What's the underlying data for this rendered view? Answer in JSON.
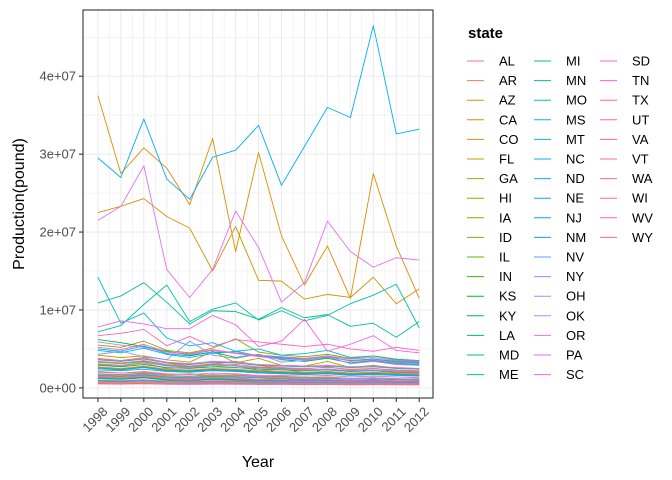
{
  "chart_data": {
    "type": "line",
    "xlabel": "Year",
    "ylabel": "Production(pound)",
    "legend_title": "state",
    "legend_position": "right",
    "grid": true,
    "xlim": [
      1997.35,
      2012.6
    ],
    "ylim": [
      -1300000.0,
      48500000.0
    ],
    "y_ticks": [
      0,
      10000000,
      20000000,
      30000000,
      40000000
    ],
    "y_tick_labels": [
      "0e+00",
      "1e+07",
      "2e+07",
      "3e+07",
      "4e+07"
    ],
    "x": [
      1998,
      1999,
      2000,
      2001,
      2002,
      2003,
      2004,
      2005,
      2006,
      2007,
      2008,
      2009,
      2010,
      2011,
      2012
    ],
    "x_tick_labels": [
      "1998",
      "1999",
      "2000",
      "2001",
      "2002",
      "2003",
      "2004",
      "2005",
      "2006",
      "2007",
      "2008",
      "2009",
      "2010",
      "2011",
      "2012"
    ],
    "series": [
      {
        "name": "AL",
        "color": "#F8766D",
        "values": [
          2100000,
          1900000,
          2000000,
          1700000,
          1800000,
          1600000,
          1700000,
          1500000,
          1400000,
          1300000,
          1400000,
          1200000,
          1300000,
          1100000,
          1200000
        ]
      },
      {
        "name": "AR",
        "color": "#F07F4A",
        "values": [
          1500000,
          1400000,
          1600000,
          1300000,
          1200000,
          1400000,
          1300000,
          1100000,
          1200000,
          1000000,
          1100000,
          900000,
          1000000,
          900000,
          800000
        ]
      },
      {
        "name": "AZ",
        "color": "#E6861E",
        "values": [
          3800000,
          3500000,
          3900000,
          3200000,
          2800000,
          3100000,
          3400000,
          2900000,
          2600000,
          2400000,
          2700000,
          2300000,
          2500000,
          2200000,
          2100000
        ]
      },
      {
        "name": "CA",
        "color": "#DB8E00",
        "values": [
          37500000,
          27500000,
          30800000,
          28200000,
          23500000,
          32000000,
          17500000,
          30200000,
          19500000,
          13200000,
          18200000,
          11500000,
          27500000,
          18200000,
          11500000
        ]
      },
      {
        "name": "CO",
        "color": "#CF9400",
        "values": [
          22500000,
          23300000,
          24300000,
          22000000,
          20500000,
          15000000,
          20700000,
          13800000,
          13700000,
          11400000,
          12000000,
          11600000,
          14200000,
          10800000,
          12700000
        ]
      },
      {
        "name": "FL",
        "color": "#C39A00",
        "values": [
          3000000,
          2800000,
          3200000,
          2500000,
          2600000,
          2700000,
          2900000,
          2200000,
          2400000,
          2000000,
          2100000,
          1900000,
          2000000,
          1800000,
          1700000
        ]
      },
      {
        "name": "GA",
        "color": "#B59F00",
        "values": [
          4200000,
          3900000,
          4100000,
          3600000,
          3300000,
          4700000,
          3200000,
          3800000,
          2900000,
          2800000,
          3400000,
          2600000,
          2900000,
          2500000,
          2400000
        ]
      },
      {
        "name": "HI",
        "color": "#A5A400",
        "values": [
          600000,
          580000,
          620000,
          550000,
          530000,
          560000,
          540000,
          500000,
          520000,
          480000,
          500000,
          470000,
          490000,
          460000,
          450000
        ]
      },
      {
        "name": "IA",
        "color": "#93A900",
        "values": [
          1800000,
          1700000,
          1900000,
          1600000,
          1500000,
          1700000,
          1600000,
          1400000,
          1500000,
          1300000,
          1400000,
          1200000,
          1300000,
          1200000,
          1100000
        ]
      },
      {
        "name": "ID",
        "color": "#7EAD00",
        "values": [
          5500000,
          5200000,
          6000000,
          4800000,
          4500000,
          5100000,
          6300000,
          4600000,
          4200000,
          4000000,
          4300000,
          3800000,
          4100000,
          3600000,
          3500000
        ]
      },
      {
        "name": "IL",
        "color": "#64B200",
        "values": [
          3300000,
          3100000,
          3400000,
          2900000,
          2700000,
          3000000,
          2800000,
          2600000,
          2500000,
          2300000,
          2400000,
          2200000,
          2300000,
          2100000,
          2000000
        ]
      },
      {
        "name": "IN",
        "color": "#3CB500",
        "values": [
          2600000,
          2400000,
          2700000,
          2300000,
          2200000,
          2400000,
          2300000,
          2100000,
          2000000,
          1900000,
          2000000,
          1800000,
          1900000,
          1700000,
          1600000
        ]
      },
      {
        "name": "KS",
        "color": "#00B81F",
        "values": [
          1200000,
          1100000,
          1300000,
          1000000,
          950000,
          1100000,
          1000000,
          900000,
          950000,
          850000,
          900000,
          800000,
          850000,
          780000,
          750000
        ]
      },
      {
        "name": "KY",
        "color": "#00BA42",
        "values": [
          6200000,
          5800000,
          5300000,
          4700000,
          4200000,
          4600000,
          3900000,
          4300000,
          3600000,
          3400000,
          3800000,
          3200000,
          3500000,
          3100000,
          3000000
        ]
      },
      {
        "name": "LA",
        "color": "#00BC5C",
        "values": [
          2900000,
          2700000,
          3000000,
          2600000,
          2500000,
          2700000,
          2600000,
          2400000,
          2300000,
          2200000,
          2300000,
          2100000,
          2200000,
          2000000,
          1900000
        ]
      },
      {
        "name": "MD",
        "color": "#00BE72",
        "values": [
          900000,
          850000,
          950000,
          800000,
          780000,
          820000,
          800000,
          750000,
          760000,
          720000,
          740000,
          700000,
          710000,
          680000,
          660000
        ]
      },
      {
        "name": "ME",
        "color": "#00BF87",
        "values": [
          1600000,
          1500000,
          1700000,
          1400000,
          1300000,
          1500000,
          1400000,
          1300000,
          1200000,
          1100000,
          1200000,
          1100000,
          1150000,
          1050000,
          1000000
        ]
      },
      {
        "name": "MI",
        "color": "#00C099",
        "values": [
          10900000,
          11800000,
          13500000,
          11000000,
          8200000,
          9900000,
          9800000,
          8800000,
          10300000,
          9000000,
          9400000,
          7900000,
          8300000,
          6500000,
          8500000
        ]
      },
      {
        "name": "MN",
        "color": "#00C0AA",
        "values": [
          7200000,
          8000000,
          10700000,
          13200000,
          8500000,
          10100000,
          10900000,
          8700000,
          9900000,
          8600000,
          9300000,
          10800000,
          11900000,
          13300000,
          7700000
        ]
      },
      {
        "name": "MO",
        "color": "#00C0BA",
        "values": [
          3600000,
          3400000,
          3700000,
          3200000,
          3000000,
          3300000,
          3200000,
          2900000,
          2800000,
          2700000,
          2800000,
          2600000,
          2700000,
          2500000,
          2400000
        ]
      },
      {
        "name": "MS",
        "color": "#00BEC9",
        "values": [
          2300000,
          2200000,
          2400000,
          2100000,
          2000000,
          2200000,
          2100000,
          1900000,
          1800000,
          1700000,
          1800000,
          1600000,
          1700000,
          1600000,
          1500000
        ]
      },
      {
        "name": "MT",
        "color": "#00BBD7",
        "values": [
          14200000,
          8300000,
          9600000,
          6400000,
          5400000,
          5800000,
          4700000,
          5000000,
          4200000,
          4400000,
          4800000,
          3900000,
          4100000,
          3700000,
          3500000
        ]
      },
      {
        "name": "NC",
        "color": "#00B7E4",
        "values": [
          4800000,
          4500000,
          5100000,
          4300000,
          3900000,
          4400000,
          4700000,
          4100000,
          3800000,
          3600000,
          3900000,
          3500000,
          3700000,
          3300000,
          3200000
        ]
      },
      {
        "name": "ND",
        "color": "#00B2F0",
        "values": [
          5000000,
          4700000,
          5400000,
          4400000,
          4100000,
          4600000,
          4500000,
          4100000,
          3900000,
          3700000,
          4000000,
          3500000,
          3700000,
          3400000,
          3300000
        ]
      },
      {
        "name": "NE",
        "color": "#00ADFA",
        "values": [
          29500000,
          27000000,
          34500000,
          26800000,
          24200000,
          29600000,
          30500000,
          33700000,
          26000000,
          31000000,
          36000000,
          34700000,
          46500000,
          32600000,
          33200000
        ]
      },
      {
        "name": "NJ",
        "color": "#00A6FF",
        "values": [
          1300000,
          1200000,
          1400000,
          1100000,
          1000000,
          1200000,
          1100000,
          1000000,
          950000,
          900000,
          950000,
          880000,
          900000,
          850000,
          820000
        ]
      },
      {
        "name": "NM",
        "color": "#119DFF",
        "values": [
          2500000,
          2300000,
          2600000,
          2200000,
          2100000,
          2300000,
          2200000,
          2000000,
          1900000,
          1800000,
          1900000,
          1700000,
          1800000,
          1700000,
          1600000
        ]
      },
      {
        "name": "NV",
        "color": "#619CFF",
        "values": [
          800000,
          750000,
          850000,
          700000,
          680000,
          720000,
          700000,
          650000,
          660000,
          620000,
          640000,
          600000,
          610000,
          580000,
          560000
        ]
      },
      {
        "name": "NY",
        "color": "#8893FF",
        "values": [
          4300000,
          4700000,
          4000000,
          3600000,
          6000000,
          4200000,
          3800000,
          4300000,
          3300000,
          3500000,
          4000000,
          3100000,
          3400000,
          3000000,
          2900000
        ]
      },
      {
        "name": "OH",
        "color": "#A58AFF",
        "values": [
          3100000,
          2900000,
          3300000,
          2800000,
          2600000,
          2900000,
          2800000,
          2500000,
          2400000,
          2300000,
          2400000,
          2200000,
          2300000,
          2100000,
          2000000
        ]
      },
      {
        "name": "OK",
        "color": "#BD81FF",
        "values": [
          1700000,
          1600000,
          1800000,
          1500000,
          1400000,
          1600000,
          1500000,
          1400000,
          1300000,
          1200000,
          1300000,
          1200000,
          1250000,
          1150000,
          1100000
        ]
      },
      {
        "name": "OR",
        "color": "#D177FF",
        "values": [
          5900000,
          5500000,
          5200000,
          4600000,
          4300000,
          4800000,
          4400000,
          4000000,
          3700000,
          3600000,
          4100000,
          3400000,
          3600000,
          3200000,
          3100000
        ]
      },
      {
        "name": "PA",
        "color": "#E26EF7",
        "values": [
          21500000,
          23300000,
          28500000,
          15200000,
          11600000,
          15200000,
          22700000,
          18000000,
          11000000,
          13500000,
          21400000,
          17500000,
          15500000,
          16700000,
          16400000
        ]
      },
      {
        "name": "SC",
        "color": "#EF67EB",
        "values": [
          2000000,
          1900000,
          2100000,
          1800000,
          1700000,
          1900000,
          1800000,
          1600000,
          1600000,
          1500000,
          1600000,
          1400000,
          1500000,
          1400000,
          1300000
        ]
      },
      {
        "name": "SD",
        "color": "#F863DF",
        "values": [
          7800000,
          8600000,
          8200000,
          7600000,
          7600000,
          9300000,
          8100000,
          5300000,
          6000000,
          8800000,
          4700000,
          5600000,
          6700000,
          4800000,
          4500000
        ]
      },
      {
        "name": "TN",
        "color": "#FF61D0",
        "values": [
          3400000,
          3200000,
          3500000,
          3000000,
          2800000,
          3100000,
          3000000,
          2700000,
          2600000,
          2500000,
          2600000,
          2400000,
          2500000,
          2300000,
          2200000
        ]
      },
      {
        "name": "TX",
        "color": "#FF62BF",
        "values": [
          6700000,
          7000000,
          7500000,
          5400000,
          6600000,
          5300000,
          6200000,
          5900000,
          5600000,
          5300000,
          5600000,
          5000000,
          4700000,
          5200000,
          4800000
        ]
      },
      {
        "name": "UT",
        "color": "#FF65AD",
        "values": [
          3700000,
          3500000,
          3800000,
          3300000,
          3100000,
          3400000,
          3300000,
          3000000,
          2900000,
          2800000,
          2900000,
          2700000,
          2800000,
          2600000,
          2500000
        ]
      },
      {
        "name": "VA",
        "color": "#FF6A98",
        "values": [
          1400000,
          1300000,
          1500000,
          1200000,
          1100000,
          1300000,
          1200000,
          1100000,
          1050000,
          1000000,
          1050000,
          950000,
          1000000,
          920000,
          900000
        ]
      },
      {
        "name": "VT",
        "color": "#FF6C91",
        "values": [
          700000,
          660000,
          720000,
          620000,
          600000,
          640000,
          620000,
          580000,
          590000,
          550000,
          570000,
          530000,
          540000,
          510000,
          500000
        ]
      },
      {
        "name": "WA",
        "color": "#F8766D",
        "values": [
          2700000,
          2500000,
          2800000,
          2400000,
          2300000,
          2500000,
          2400000,
          2200000,
          2100000,
          2000000,
          2100000,
          1900000,
          2000000,
          1900000,
          1800000
        ]
      },
      {
        "name": "WI",
        "color": "#FF6A98",
        "values": [
          5200000,
          4900000,
          5600000,
          4600000,
          4400000,
          4900000,
          4500000,
          4200000,
          4000000,
          3800000,
          4100000,
          3700000,
          3900000,
          3500000,
          3400000
        ]
      },
      {
        "name": "WV",
        "color": "#FF65AD",
        "values": [
          500000,
          480000,
          520000,
          460000,
          450000,
          470000,
          460000,
          430000,
          440000,
          410000,
          420000,
          400000,
          410000,
          390000,
          380000
        ]
      },
      {
        "name": "WY",
        "color": "#FF61C3",
        "values": [
          1000000,
          950000,
          1050000,
          900000,
          870000,
          930000,
          900000,
          850000,
          860000,
          810000,
          830000,
          790000,
          800000,
          770000,
          750000
        ]
      }
    ]
  }
}
